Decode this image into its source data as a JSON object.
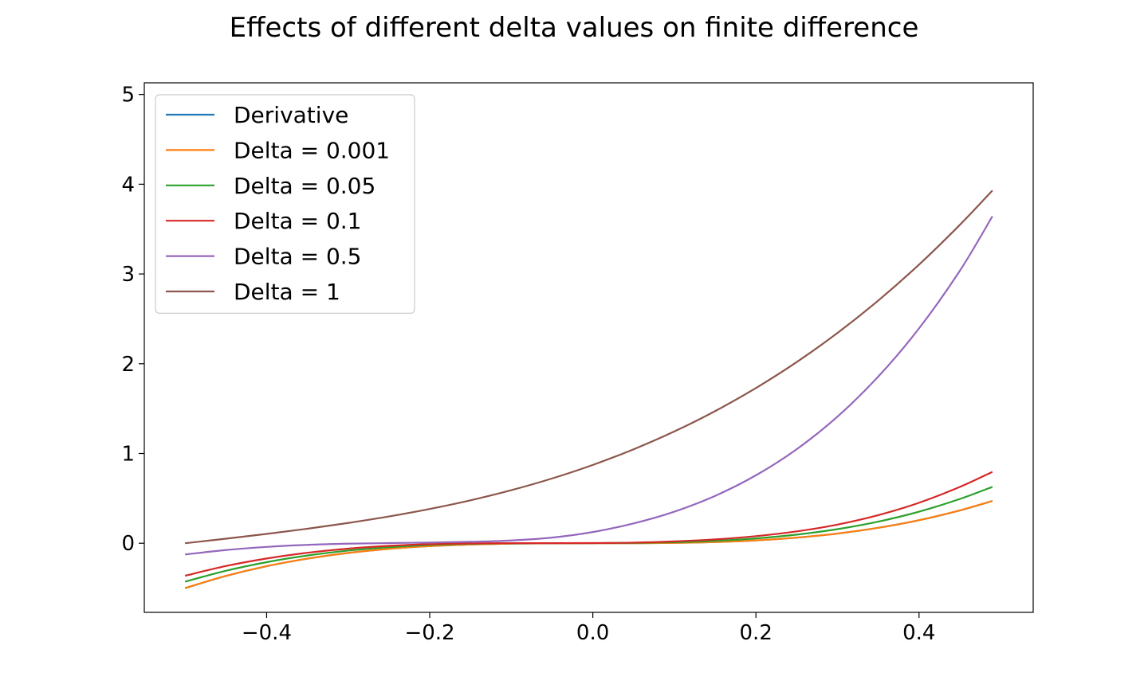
{
  "chart_data": {
    "type": "line",
    "title": "Effects of different delta values on finite difference",
    "xlabel": "",
    "ylabel": "",
    "xlim": [
      -0.55,
      0.54
    ],
    "ylim": [
      -0.77,
      5.13
    ],
    "xticks": [
      -0.4,
      -0.2,
      0.0,
      0.2,
      0.4
    ],
    "xtick_labels": [
      "−0.4",
      "−0.2",
      "0.0",
      "0.2",
      "0.4"
    ],
    "yticks": [
      0,
      1,
      2,
      3,
      4,
      5
    ],
    "ytick_labels": [
      "0",
      "1",
      "2",
      "3",
      "4",
      "5"
    ],
    "grid": false,
    "legend_position": "top-left",
    "x": [
      -0.5,
      -0.45,
      -0.4,
      -0.35,
      -0.3,
      -0.25,
      -0.2,
      -0.15,
      -0.1,
      -0.05,
      0.0,
      0.05,
      0.1,
      0.15,
      0.2,
      0.25,
      0.3,
      0.35,
      0.4,
      0.45,
      0.49
    ],
    "series": [
      {
        "name": "Derivative",
        "color": "#1f77b4",
        "values": [
          -0.5,
          -0.365,
          -0.256,
          -0.172,
          -0.108,
          -0.0625,
          -0.032,
          -0.0135,
          -0.004,
          -0.0005,
          0.0,
          0.0005,
          0.004,
          0.0135,
          0.032,
          0.0625,
          0.108,
          0.172,
          0.256,
          0.365,
          0.471
        ]
      },
      {
        "name": "Delta = 0.001",
        "color": "#ff7f0e",
        "values": [
          -0.499,
          -0.364,
          -0.255,
          -0.171,
          -0.108,
          -0.0623,
          -0.0319,
          -0.0134,
          -0.0039,
          -0.0005,
          0.0,
          0.0005,
          0.004,
          0.0136,
          0.0321,
          0.0627,
          0.1083,
          0.172,
          0.257,
          0.366,
          0.472
        ]
      },
      {
        "name": "Delta = 0.05",
        "color": "#2ca02c",
        "values": [
          -0.428,
          -0.307,
          -0.211,
          -0.137,
          -0.082,
          -0.044,
          -0.019,
          -0.006,
          -0.0003,
          0.0008,
          0.0013,
          0.004,
          0.0115,
          0.027,
          0.054,
          0.096,
          0.157,
          0.241,
          0.352,
          0.493,
          0.628
        ]
      },
      {
        "name": "Delta = 0.1",
        "color": "#d62728",
        "values": [
          -0.362,
          -0.254,
          -0.17,
          -0.106,
          -0.06,
          -0.029,
          -0.01,
          -0.0012,
          0.001,
          0.001,
          0.002,
          0.007,
          0.021,
          0.043,
          0.079,
          0.132,
          0.208,
          0.313,
          0.451,
          0.627,
          0.795
        ]
      },
      {
        "name": "Delta = 0.5",
        "color": "#9467bd",
        "values": [
          -0.125,
          -0.076,
          -0.041,
          -0.018,
          -0.005,
          0.002,
          0.008,
          0.016,
          0.031,
          0.063,
          0.125,
          0.221,
          0.352,
          0.528,
          0.757,
          1.048,
          1.411,
          1.857,
          2.394,
          3.035,
          3.643
        ]
      },
      {
        "name": "Delta = 1",
        "color": "#8c564b",
        "values": [
          0.0,
          0.0506,
          0.104,
          0.1618,
          0.226,
          0.2985,
          0.382,
          0.4786,
          0.591,
          0.7216,
          0.8727,
          1.0466,
          1.2458,
          1.4725,
          1.7293,
          2.0187,
          2.3428,
          2.7039,
          3.1046,
          3.547,
          3.93
        ]
      }
    ]
  }
}
